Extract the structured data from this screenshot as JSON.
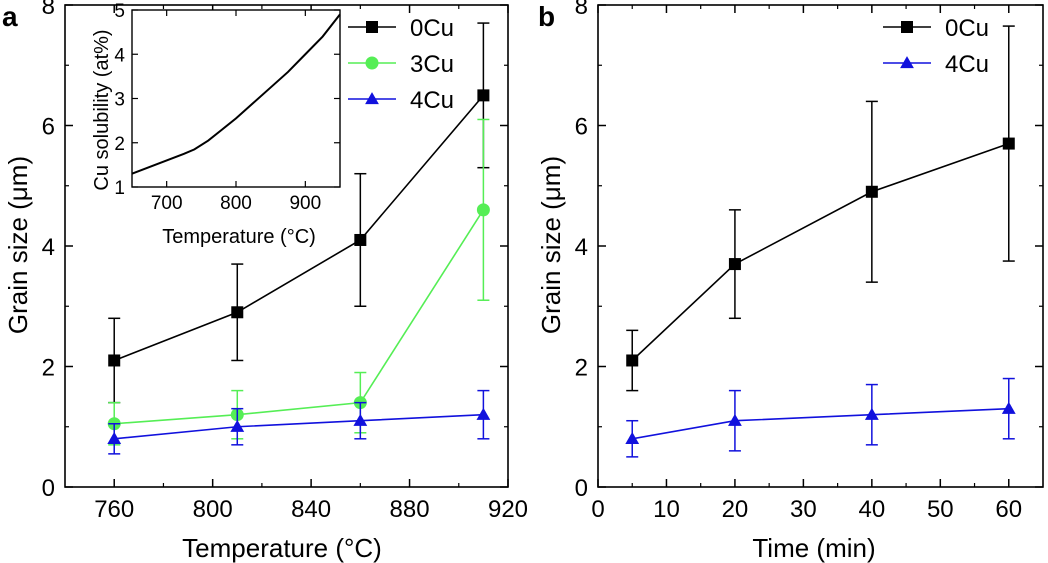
{
  "chart_data": [
    {
      "panel": "a",
      "type": "line",
      "xlabel": "Temperature (°C)",
      "ylabel": "Grain size (μm)",
      "xlim": [
        740,
        920
      ],
      "ylim": [
        0,
        8
      ],
      "xticks": [
        760,
        800,
        840,
        880,
        920
      ],
      "yticks": [
        0,
        2,
        4,
        6,
        8
      ],
      "legend_position": "top-right",
      "series": [
        {
          "name": "0Cu",
          "color": "#000000",
          "marker": "square",
          "x": [
            760,
            810,
            860,
            910
          ],
          "y": [
            2.1,
            2.9,
            4.1,
            6.5
          ],
          "err": [
            0.7,
            0.8,
            1.1,
            1.2
          ]
        },
        {
          "name": "3Cu",
          "color": "#55ee55",
          "marker": "circle",
          "x": [
            760,
            810,
            860,
            910
          ],
          "y": [
            1.05,
            1.2,
            1.4,
            4.6
          ],
          "err": [
            0.35,
            0.4,
            0.5,
            1.5
          ]
        },
        {
          "name": "4Cu",
          "color": "#1111dd",
          "marker": "triangle",
          "x": [
            760,
            810,
            860,
            910
          ],
          "y": [
            0.8,
            1.0,
            1.1,
            1.2
          ],
          "err": [
            0.25,
            0.3,
            0.3,
            0.4
          ]
        }
      ],
      "inset": {
        "type": "line",
        "xlabel": "Temperature (°C)",
        "ylabel": "Cu solubility (at%)",
        "xlim": [
          650,
          950
        ],
        "ylim": [
          1,
          5
        ],
        "xticks": [
          700,
          800,
          900
        ],
        "yticks": [
          1,
          2,
          3,
          4,
          5
        ],
        "x": [
          650,
          675,
          700,
          725,
          740,
          760,
          780,
          800,
          825,
          850,
          875,
          900,
          925,
          950
        ],
        "y": [
          1.3,
          1.45,
          1.6,
          1.75,
          1.85,
          2.05,
          2.3,
          2.55,
          2.9,
          3.25,
          3.6,
          4.0,
          4.4,
          4.9
        ]
      }
    },
    {
      "panel": "b",
      "type": "line",
      "xlabel": "Time (min)",
      "ylabel": "Grain size (μm)",
      "xlim": [
        0,
        65
      ],
      "ylim": [
        0,
        8
      ],
      "xticks": [
        0,
        10,
        20,
        30,
        40,
        50,
        60
      ],
      "yticks": [
        0,
        2,
        4,
        6,
        8
      ],
      "legend_position": "top-right",
      "series": [
        {
          "name": "0Cu",
          "color": "#000000",
          "marker": "square",
          "x": [
            5,
            20,
            40,
            60
          ],
          "y": [
            2.1,
            3.7,
            4.9,
            5.7
          ],
          "err": [
            0.5,
            0.9,
            1.5,
            1.95
          ]
        },
        {
          "name": "4Cu",
          "color": "#1111dd",
          "marker": "triangle",
          "x": [
            5,
            20,
            40,
            60
          ],
          "y": [
            0.8,
            1.1,
            1.2,
            1.3
          ],
          "err": [
            0.3,
            0.5,
            0.5,
            0.5
          ]
        }
      ]
    }
  ]
}
